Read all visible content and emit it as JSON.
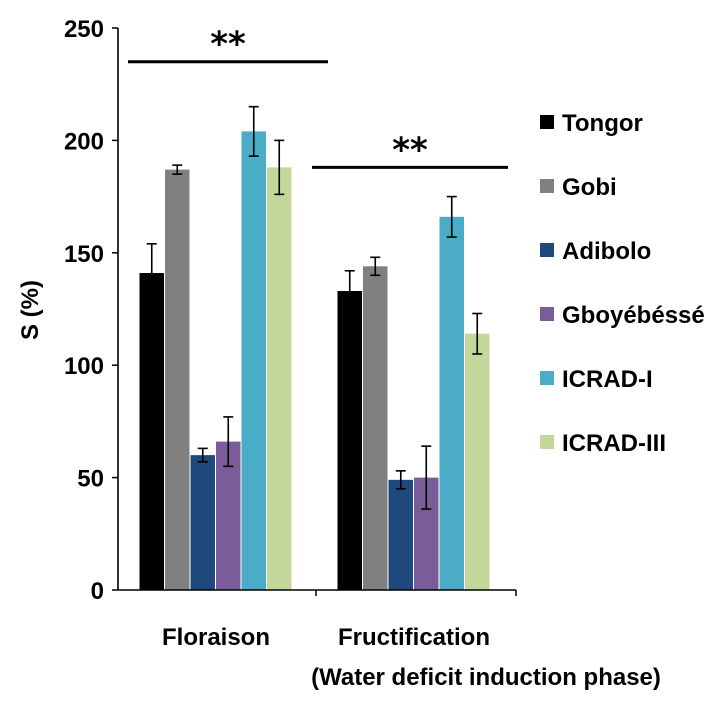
{
  "chart_data": {
    "type": "bar",
    "title": "",
    "ylabel": "S (%)",
    "xlabel": "(Water deficit induction phase)",
    "ylim": [
      0,
      250
    ],
    "yticks": [
      0,
      50,
      100,
      150,
      200,
      250
    ],
    "categories": [
      "Floraison",
      "Fructification"
    ],
    "legend_position": "right",
    "series": [
      {
        "name": "Tongor",
        "color": "#000000",
        "values": [
          141,
          133
        ],
        "errors": [
          13,
          9
        ]
      },
      {
        "name": "Gobi",
        "color": "#808080",
        "values": [
          187,
          144
        ],
        "errors": [
          2,
          4
        ]
      },
      {
        "name": "Adibolo",
        "color": "#1f497d",
        "values": [
          60,
          49
        ],
        "errors": [
          3,
          4
        ]
      },
      {
        "name": "Gboyébéssé",
        "color": "#7a5c99",
        "values": [
          66,
          50
        ],
        "errors": [
          11,
          14
        ]
      },
      {
        "name": "ICRAD-I",
        "color": "#4aacc6",
        "values": [
          204,
          166
        ],
        "errors": [
          11,
          9
        ]
      },
      {
        "name": "ICRAD-III",
        "color": "#c4d79b",
        "values": [
          188,
          114
        ],
        "errors": [
          12,
          9
        ]
      }
    ],
    "annotations": [
      {
        "text": "**",
        "group": "Floraison",
        "y": 235
      },
      {
        "text": "**",
        "group": "Fructification",
        "y": 188
      }
    ]
  }
}
